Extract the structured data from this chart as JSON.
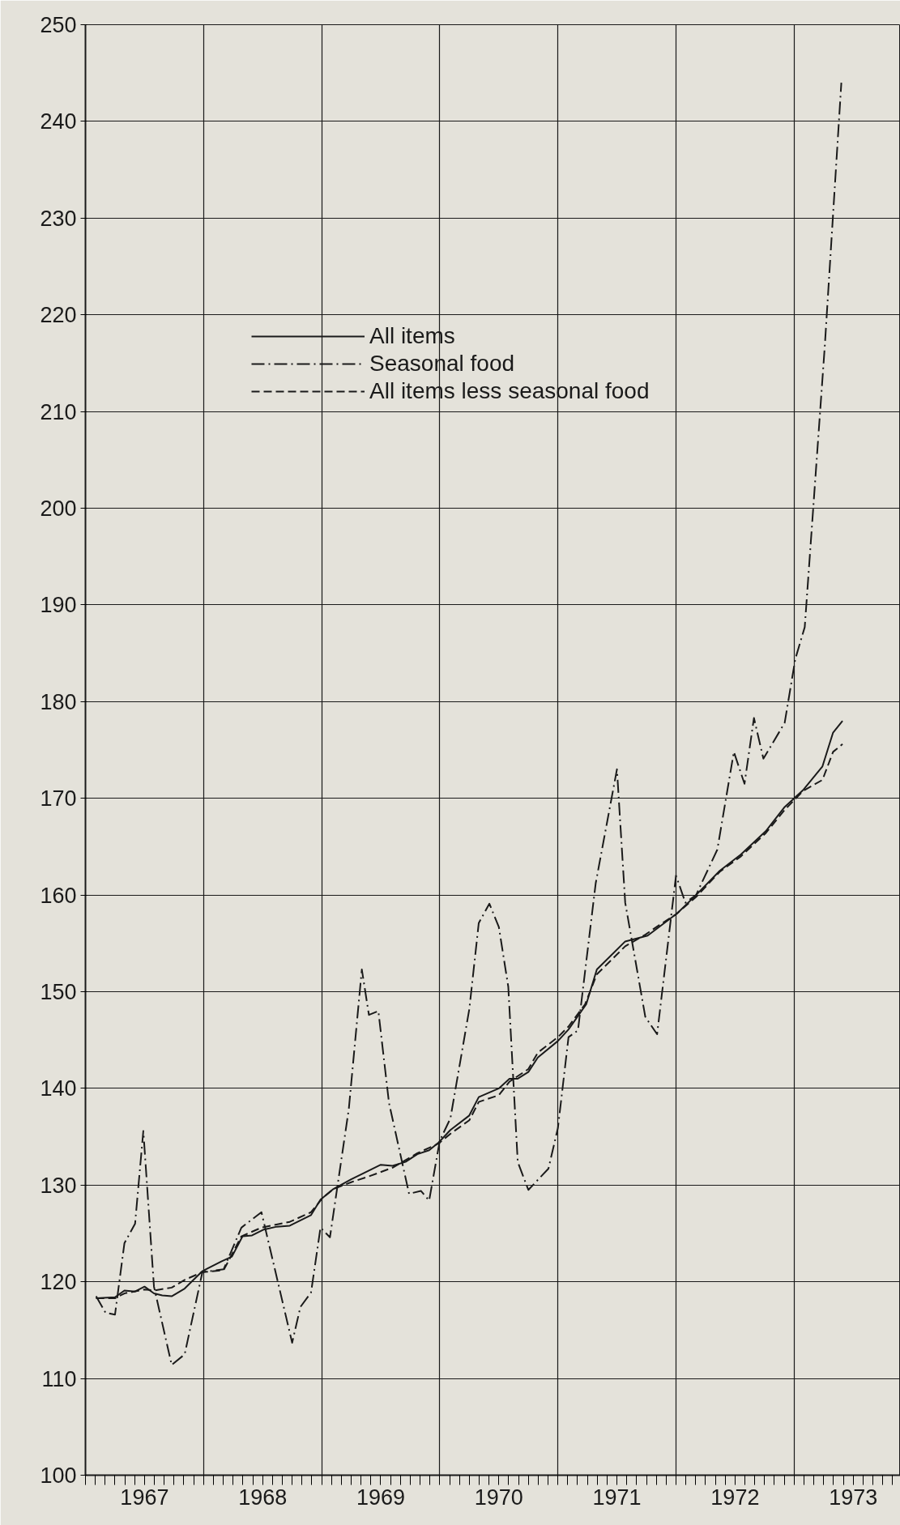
{
  "chart_data": {
    "type": "line",
    "xlim": [
      1967.0,
      1973.9
    ],
    "xticks": [
      {
        "value": 1967,
        "label": null
      },
      {
        "value": 1967.5,
        "label": "1967"
      },
      {
        "value": 1968,
        "label": null
      },
      {
        "value": 1968.5,
        "label": "1968"
      },
      {
        "value": 1969,
        "label": null
      },
      {
        "value": 1969.5,
        "label": "1969"
      },
      {
        "value": 1970,
        "label": null
      },
      {
        "value": 1970.5,
        "label": "1970"
      },
      {
        "value": 1971,
        "label": null
      },
      {
        "value": 1971.5,
        "label": "1971"
      },
      {
        "value": 1972,
        "label": null
      },
      {
        "value": 1972.5,
        "label": "1972"
      },
      {
        "value": 1973,
        "label": null
      },
      {
        "value": 1973.5,
        "label": "1973"
      }
    ],
    "ylim": [
      100,
      250
    ],
    "yticks": [
      100,
      110,
      120,
      130,
      140,
      150,
      160,
      170,
      180,
      190,
      200,
      210,
      220,
      230,
      240,
      250
    ],
    "grid": true,
    "legend": "top left",
    "marker": "none",
    "series": [
      {
        "name": "All items",
        "color": "#1a1a1a",
        "line_style": "solid",
        "x": [
          1967.09,
          1967.25,
          1967.33,
          1967.42,
          1967.5,
          1967.58,
          1967.65,
          1967.73,
          1967.84,
          1967.99,
          1968.15,
          1968.24,
          1968.33,
          1968.41,
          1968.51,
          1968.62,
          1968.73,
          1968.91,
          1968.99,
          1969.1,
          1969.25,
          1969.4,
          1969.5,
          1969.6,
          1969.71,
          1969.81,
          1969.91,
          1969.99,
          1970.09,
          1970.25,
          1970.33,
          1970.5,
          1970.59,
          1970.66,
          1970.75,
          1970.83,
          1971.0,
          1971.09,
          1971.24,
          1971.33,
          1971.57,
          1971.76,
          1972.01,
          1972.17,
          1972.37,
          1972.55,
          1972.76,
          1972.92,
          1973.08,
          1973.24,
          1973.33,
          1973.41
        ],
        "values": [
          118.3,
          118.4,
          119.1,
          119.0,
          119.5,
          118.8,
          118.6,
          118.5,
          119.3,
          121.1,
          122.1,
          122.6,
          124.7,
          124.8,
          125.4,
          125.7,
          125.8,
          126.9,
          128.5,
          129.6,
          130.6,
          131.5,
          132.1,
          132.0,
          132.4,
          133.2,
          133.6,
          134.4,
          135.7,
          137.2,
          139.1,
          140.0,
          141.0,
          141.0,
          141.7,
          143.2,
          144.9,
          146.1,
          148.7,
          152.3,
          155.2,
          155.8,
          158.1,
          160.0,
          162.5,
          164.2,
          166.6,
          169.1,
          170.9,
          173.3,
          176.8,
          178.0
        ]
      },
      {
        "name": "Seasonal food",
        "color": "#1a1a1a",
        "line_style": "dashdot",
        "x": [
          1967.09,
          1967.17,
          1967.25,
          1967.33,
          1967.42,
          1967.49,
          1967.58,
          1967.73,
          1967.84,
          1967.99,
          1968.17,
          1968.32,
          1968.49,
          1968.75,
          1968.82,
          1968.91,
          1968.99,
          1969.07,
          1969.23,
          1969.34,
          1969.4,
          1969.48,
          1969.57,
          1969.74,
          1969.84,
          1969.91,
          1970.0,
          1970.09,
          1970.25,
          1970.33,
          1970.42,
          1970.5,
          1970.58,
          1970.66,
          1970.75,
          1970.92,
          1971.0,
          1971.09,
          1971.17,
          1971.32,
          1971.5,
          1971.57,
          1971.74,
          1971.84,
          1972.0,
          1972.08,
          1972.17,
          1972.35,
          1972.49,
          1972.58,
          1972.66,
          1972.74,
          1972.92,
          1973.01,
          1973.09,
          1973.26,
          1973.4
        ],
        "values": [
          118.5,
          116.8,
          116.6,
          124.0,
          126.0,
          135.6,
          119.5,
          111.4,
          112.5,
          121.0,
          121.3,
          125.6,
          127.2,
          113.7,
          117.4,
          118.9,
          125.6,
          124.6,
          137.9,
          152.3,
          147.6,
          148.0,
          138.5,
          129.1,
          129.4,
          128.4,
          134.6,
          136.9,
          148.2,
          157.1,
          159.1,
          156.7,
          150.5,
          132.4,
          129.5,
          131.7,
          135.9,
          145.3,
          146.0,
          161.2,
          173.0,
          159.2,
          147.4,
          145.6,
          162.0,
          159.2,
          160.0,
          164.7,
          174.8,
          171.5,
          178.3,
          174.1,
          177.8,
          184.4,
          187.7,
          216.8,
          244.0
        ]
      },
      {
        "name": "All items less seasonal food",
        "color": "#1a1a1a",
        "line_style": "dashed",
        "x": [
          1967.09,
          1967.25,
          1967.33,
          1967.5,
          1967.58,
          1967.73,
          1967.84,
          1967.99,
          1968.17,
          1968.32,
          1968.49,
          1968.73,
          1968.91,
          1969.01,
          1969.1,
          1969.25,
          1969.4,
          1969.6,
          1969.81,
          1969.99,
          1970.1,
          1970.25,
          1970.33,
          1970.5,
          1970.59,
          1970.75,
          1970.83,
          1971.0,
          1971.09,
          1971.23,
          1971.33,
          1971.57,
          1971.74,
          1971.86,
          1972.0,
          1972.17,
          1972.37,
          1972.55,
          1972.76,
          1972.92,
          1973.08,
          1973.24,
          1973.33,
          1973.41
        ],
        "values": [
          118.3,
          118.3,
          118.8,
          119.2,
          119.1,
          119.4,
          120.2,
          121.0,
          121.2,
          124.7,
          125.6,
          126.2,
          127.2,
          128.7,
          129.6,
          130.3,
          130.9,
          131.8,
          133.3,
          134.3,
          135.4,
          136.7,
          138.6,
          139.3,
          140.7,
          142.0,
          143.7,
          145.3,
          146.4,
          148.7,
          151.8,
          154.7,
          155.9,
          156.9,
          158.0,
          159.8,
          162.4,
          164.0,
          166.4,
          168.8,
          170.8,
          171.9,
          174.8,
          175.6
        ]
      }
    ]
  }
}
